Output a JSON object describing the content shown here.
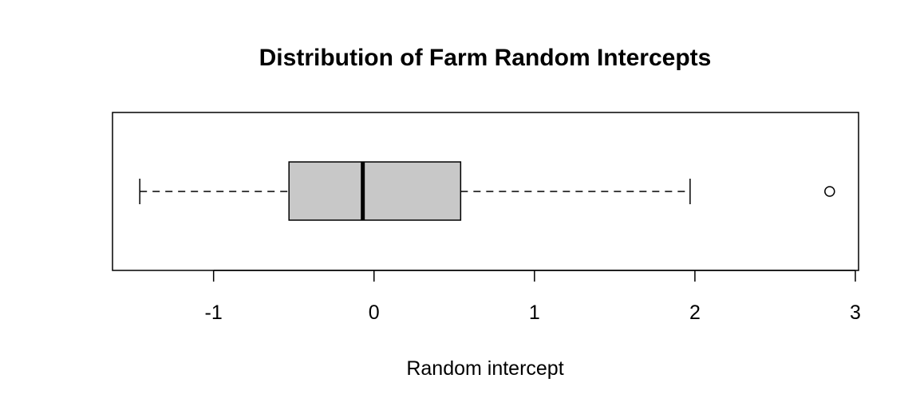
{
  "chart_data": {
    "type": "boxplot",
    "orientation": "horizontal",
    "title": "Distribution of Farm Random Intercepts",
    "xlabel": "Random intercept",
    "ylabel": "",
    "xlim": [
      -1.63,
      3.02
    ],
    "x_ticks": [
      -1,
      0,
      1,
      2,
      3
    ],
    "x_tick_labels": [
      "-1",
      "0",
      "1",
      "2",
      "3"
    ],
    "box": {
      "whisker_low": -1.46,
      "q1": -0.53,
      "median": -0.07,
      "q3": 0.54,
      "whisker_high": 1.97,
      "outliers": [
        2.84
      ]
    },
    "box_fill": "#c8c8c8",
    "line_color": "#000000",
    "grid": false,
    "legend": "none"
  }
}
